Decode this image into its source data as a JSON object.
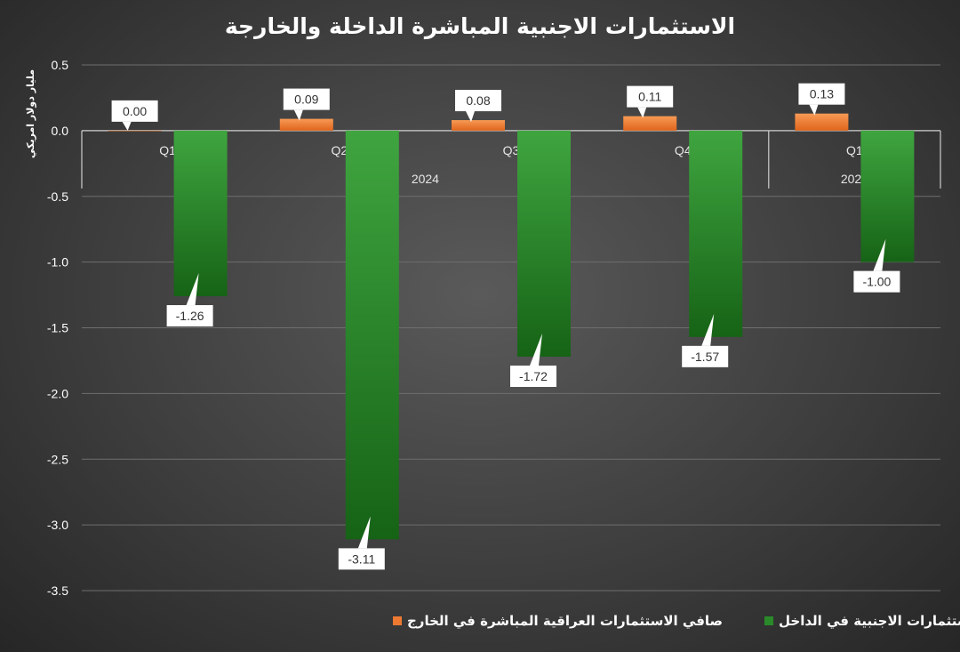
{
  "chart_data": {
    "type": "bar",
    "title": "الاستثمارات الاجنبية المباشرة الداخلة والخارجة",
    "ylabel": "مليار دولار امريكي",
    "xlabel": "",
    "ylim": [
      -3.5,
      0.5
    ],
    "yticks": [
      "0.5",
      "0.0",
      "-0.5",
      "-1.0",
      "-1.5",
      "-2.0",
      "-2.5",
      "-3.0",
      "-3.5"
    ],
    "categories": [
      "Q1",
      "Q2",
      "Q3",
      "Q4",
      "Q1"
    ],
    "groups": [
      {
        "label": "2024",
        "categories": [
          "Q1",
          "Q2",
          "Q3",
          "Q4"
        ]
      },
      {
        "label": "2025",
        "categories": [
          "Q1"
        ]
      }
    ],
    "series": [
      {
        "name": "صافي الاستثمارات العراقية المباشرة في الخارج",
        "color": "#ee7a32",
        "values": [
          0.0,
          0.09,
          0.08,
          0.11,
          0.13
        ],
        "labels": [
          "0.00",
          "0.09",
          "0.08",
          "0.11",
          "0.13"
        ]
      },
      {
        "name": "صافي الاستثمارات الاجنبية  في الداخل",
        "color": "#2a8a2a",
        "values": [
          -1.26,
          -3.11,
          -1.72,
          -1.57,
          -1.0
        ],
        "labels": [
          "-1.26",
          "-3.11",
          "-1.72",
          "-1.57",
          "-1.00"
        ]
      }
    ],
    "grid": true,
    "legend_position": "bottom"
  }
}
